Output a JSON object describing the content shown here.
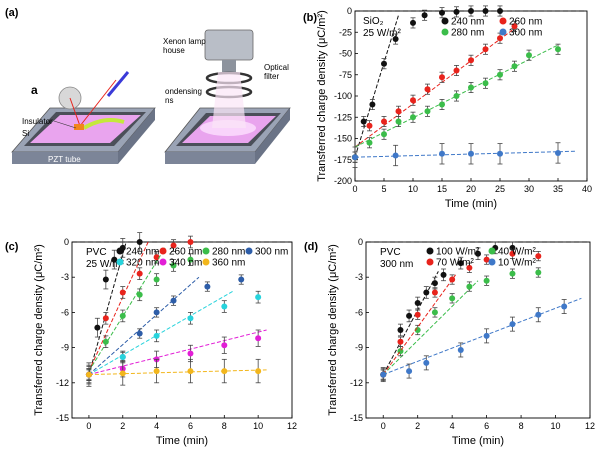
{
  "panel_a": {
    "panel_label": "(a)",
    "sub_label": "a",
    "labels": {
      "insulator": "Insulator",
      "si": "Si",
      "pzt": "PZT tube",
      "xenon": "Xenon lamp\nhouse",
      "optical": "Optical\nfilter",
      "condensing": "ondensing\nns"
    }
  },
  "colors": {
    "black": "#111111",
    "red": "#e8231c",
    "green": "#3bbd4a",
    "blue": "#3f78c8",
    "cyan": "#27d3dc",
    "darkblue": "#2d5da8",
    "magenta": "#e21ed6",
    "yellow": "#f2b61c",
    "pad_pink": "#e9a4ee",
    "plate_gray": "#5a5a5a"
  },
  "chart_data": [
    {
      "id": "b",
      "type": "scatter",
      "panel_label": "(b)",
      "annotation": [
        "SiO₂",
        "25 W/m²"
      ],
      "xlabel": "Time (min)",
      "ylabel": "Transferred charge density  (μC/m²)",
      "xlim": [
        0,
        40
      ],
      "ylim": [
        -200,
        0
      ],
      "xticks": [
        0,
        5,
        10,
        15,
        20,
        25,
        30,
        35,
        40
      ],
      "yticks": [
        0,
        -25,
        -50,
        -75,
        -100,
        -125,
        -150,
        -175,
        -200
      ],
      "legend_cols": 2,
      "series": [
        {
          "name": "240 nm",
          "color": "black",
          "x": [
            0,
            1.5,
            3,
            5,
            7,
            10,
            12,
            15,
            17.5,
            20,
            22.5,
            25
          ],
          "y": [
            -172,
            -130,
            -110,
            -62,
            -33,
            -14,
            -5,
            -2,
            -1,
            0,
            0,
            0
          ],
          "err": 6,
          "fit": [
            [
              0,
              -172
            ],
            [
              7.5,
              -5
            ]
          ]
        },
        {
          "name": "260 nm",
          "color": "red",
          "x": [
            0,
            2.5,
            5,
            7.5,
            10,
            12.5,
            15,
            17.5,
            20,
            22.5,
            25,
            27.5
          ],
          "y": [
            -172,
            -135,
            -130,
            -118,
            -105,
            -92,
            -78,
            -70,
            -58,
            -45,
            -32,
            -18
          ],
          "err": 6,
          "fit": [
            [
              0,
              -160
            ],
            [
              28,
              -18
            ]
          ]
        },
        {
          "name": "280 nm",
          "color": "green",
          "x": [
            0,
            2.5,
            5,
            7.5,
            10,
            12.5,
            15,
            17.5,
            20,
            22.5,
            25,
            27.5,
            30,
            35
          ],
          "y": [
            -172,
            -155,
            -145,
            -130,
            -125,
            -118,
            -110,
            -100,
            -90,
            -85,
            -75,
            -65,
            -52,
            -45
          ],
          "err": 6,
          "fit": [
            [
              0,
              -160
            ],
            [
              35,
              -40
            ]
          ]
        },
        {
          "name": "300 nm",
          "color": "blue",
          "x": [
            0,
            7,
            15,
            20,
            25,
            35
          ],
          "y": [
            -172,
            -170,
            -168,
            -168,
            -168,
            -167
          ],
          "err": 12,
          "fit": [
            [
              0,
              -172
            ],
            [
              38,
              -165
            ]
          ]
        }
      ]
    },
    {
      "id": "c",
      "type": "scatter",
      "panel_label": "(c)",
      "annotation": [
        "PVC",
        "25 W/m²"
      ],
      "xlabel": "Time (min)",
      "ylabel": "Transferred charge density  (μC/m²)",
      "xlim": [
        -1,
        12
      ],
      "ylim": [
        -15,
        0
      ],
      "xticks": [
        0,
        2,
        4,
        6,
        8,
        10,
        12
      ],
      "yticks": [
        0,
        -3,
        -6,
        -9,
        -12,
        -15
      ],
      "legend_cols": 4,
      "series": [
        {
          "name": "240 nm",
          "color": "black",
          "x": [
            0,
            0.5,
            1,
            1.5,
            2,
            3
          ],
          "y": [
            -11.3,
            -7.3,
            -3.2,
            -1.5,
            -0.5,
            0
          ],
          "err": 0.8,
          "fit": [
            [
              0,
              -11.3
            ],
            [
              2.2,
              0
            ]
          ]
        },
        {
          "name": "260 nm",
          "color": "red",
          "x": [
            0,
            1,
            2,
            3,
            4,
            5,
            6
          ],
          "y": [
            -11.3,
            -6.5,
            -4.3,
            -2.7,
            -1.3,
            -0.3,
            0
          ],
          "err": 0.5,
          "fit": [
            [
              0,
              -11
            ],
            [
              3.5,
              0
            ]
          ]
        },
        {
          "name": "280 nm",
          "color": "green",
          "x": [
            0,
            1,
            2,
            3,
            4,
            5,
            6
          ],
          "y": [
            -11.3,
            -8.5,
            -6.3,
            -4.5,
            -3.2,
            -2,
            -1.5
          ],
          "err": 0.5,
          "fit": [
            [
              0,
              -11
            ],
            [
              4.5,
              -0.5
            ]
          ]
        },
        {
          "name": "300 nm",
          "color": "darkblue",
          "x": [
            0,
            2,
            3,
            4,
            5,
            7,
            9
          ],
          "y": [
            -11.3,
            -9.8,
            -7.8,
            -6,
            -5,
            -3.8,
            -3.2
          ],
          "err": 0.4,
          "fit": [
            [
              0,
              -11.3
            ],
            [
              6.5,
              -3
            ]
          ]
        },
        {
          "name": "320 nm",
          "color": "cyan",
          "x": [
            0,
            2,
            4,
            6,
            8,
            10
          ],
          "y": [
            -11.3,
            -9.8,
            -8,
            -6.5,
            -5.5,
            -4.7
          ],
          "err": 0.5,
          "fit": [
            [
              0,
              -11.3
            ],
            [
              8.5,
              -4.2
            ]
          ]
        },
        {
          "name": "340 nm",
          "color": "magenta",
          "x": [
            0,
            2,
            4,
            6,
            8,
            10
          ],
          "y": [
            -11.3,
            -10.8,
            -10,
            -9.5,
            -8.8,
            -8.2
          ],
          "err": 0.7,
          "fit": [
            [
              0,
              -11.3
            ],
            [
              10.5,
              -7.5
            ]
          ]
        },
        {
          "name": "360 nm",
          "color": "yellow",
          "x": [
            0,
            2,
            4,
            6,
            8,
            10
          ],
          "y": [
            -11.3,
            -11.2,
            -11,
            -11,
            -11,
            -11
          ],
          "err": 1.0,
          "fit": [
            [
              0,
              -11.3
            ],
            [
              10.5,
              -10.9
            ]
          ]
        }
      ]
    },
    {
      "id": "d",
      "type": "scatter",
      "panel_label": "(d)",
      "annotation": [
        "PVC",
        "300 nm"
      ],
      "xlabel": "Time (min)",
      "ylabel": "Transferred charge density  (μC/m²)",
      "xlim": [
        -1,
        12
      ],
      "ylim": [
        -15,
        0
      ],
      "xticks": [
        0,
        2,
        4,
        6,
        8,
        10,
        12
      ],
      "yticks": [
        0,
        -3,
        -6,
        -9,
        -12,
        -15
      ],
      "legend_cols": 2,
      "series": [
        {
          "name": "100 W/m²",
          "color": "black",
          "x": [
            0,
            1,
            1.5,
            2,
            2.5,
            3,
            3.5,
            4.5,
            5.5,
            6.5,
            7.5
          ],
          "y": [
            -11.3,
            -7.5,
            -6.3,
            -5.2,
            -4.3,
            -3.5,
            -2.8,
            -1.8,
            -1,
            -0.5,
            -0.5
          ],
          "err": 0.5,
          "fit": [
            [
              0,
              -11.3
            ],
            [
              3.2,
              -2.5
            ]
          ]
        },
        {
          "name": "40 W/m²",
          "color": "green",
          "x": [
            0,
            1,
            2,
            3,
            4,
            5,
            6,
            7.5,
            9
          ],
          "y": [
            -11.3,
            -9.3,
            -7.5,
            -6,
            -4.8,
            -3.8,
            -3.3,
            -2.7,
            -2.6
          ],
          "err": 0.4,
          "fit": [
            [
              0,
              -11.3
            ],
            [
              5.5,
              -3.3
            ]
          ]
        },
        {
          "name": "70 W/m²",
          "color": "red",
          "x": [
            0,
            1,
            2,
            3,
            4,
            5,
            6,
            7.5,
            9
          ],
          "y": [
            -11.3,
            -8.5,
            -6.2,
            -4.3,
            -3.2,
            -2.2,
            -1.5,
            -1,
            -1.2
          ],
          "err": 0.4,
          "fit": [
            [
              0,
              -11.3
            ],
            [
              4.2,
              -2.8
            ]
          ]
        },
        {
          "name": "10 W/m²",
          "color": "blue",
          "x": [
            0,
            1.5,
            2.5,
            4.5,
            6,
            7.5,
            9,
            10.5
          ],
          "y": [
            -11.3,
            -11,
            -10.3,
            -9.2,
            -8,
            -7,
            -6.2,
            -5.5
          ],
          "err": 0.6,
          "fit": [
            [
              0,
              -11.3
            ],
            [
              11.5,
              -4.8
            ]
          ]
        }
      ]
    }
  ]
}
